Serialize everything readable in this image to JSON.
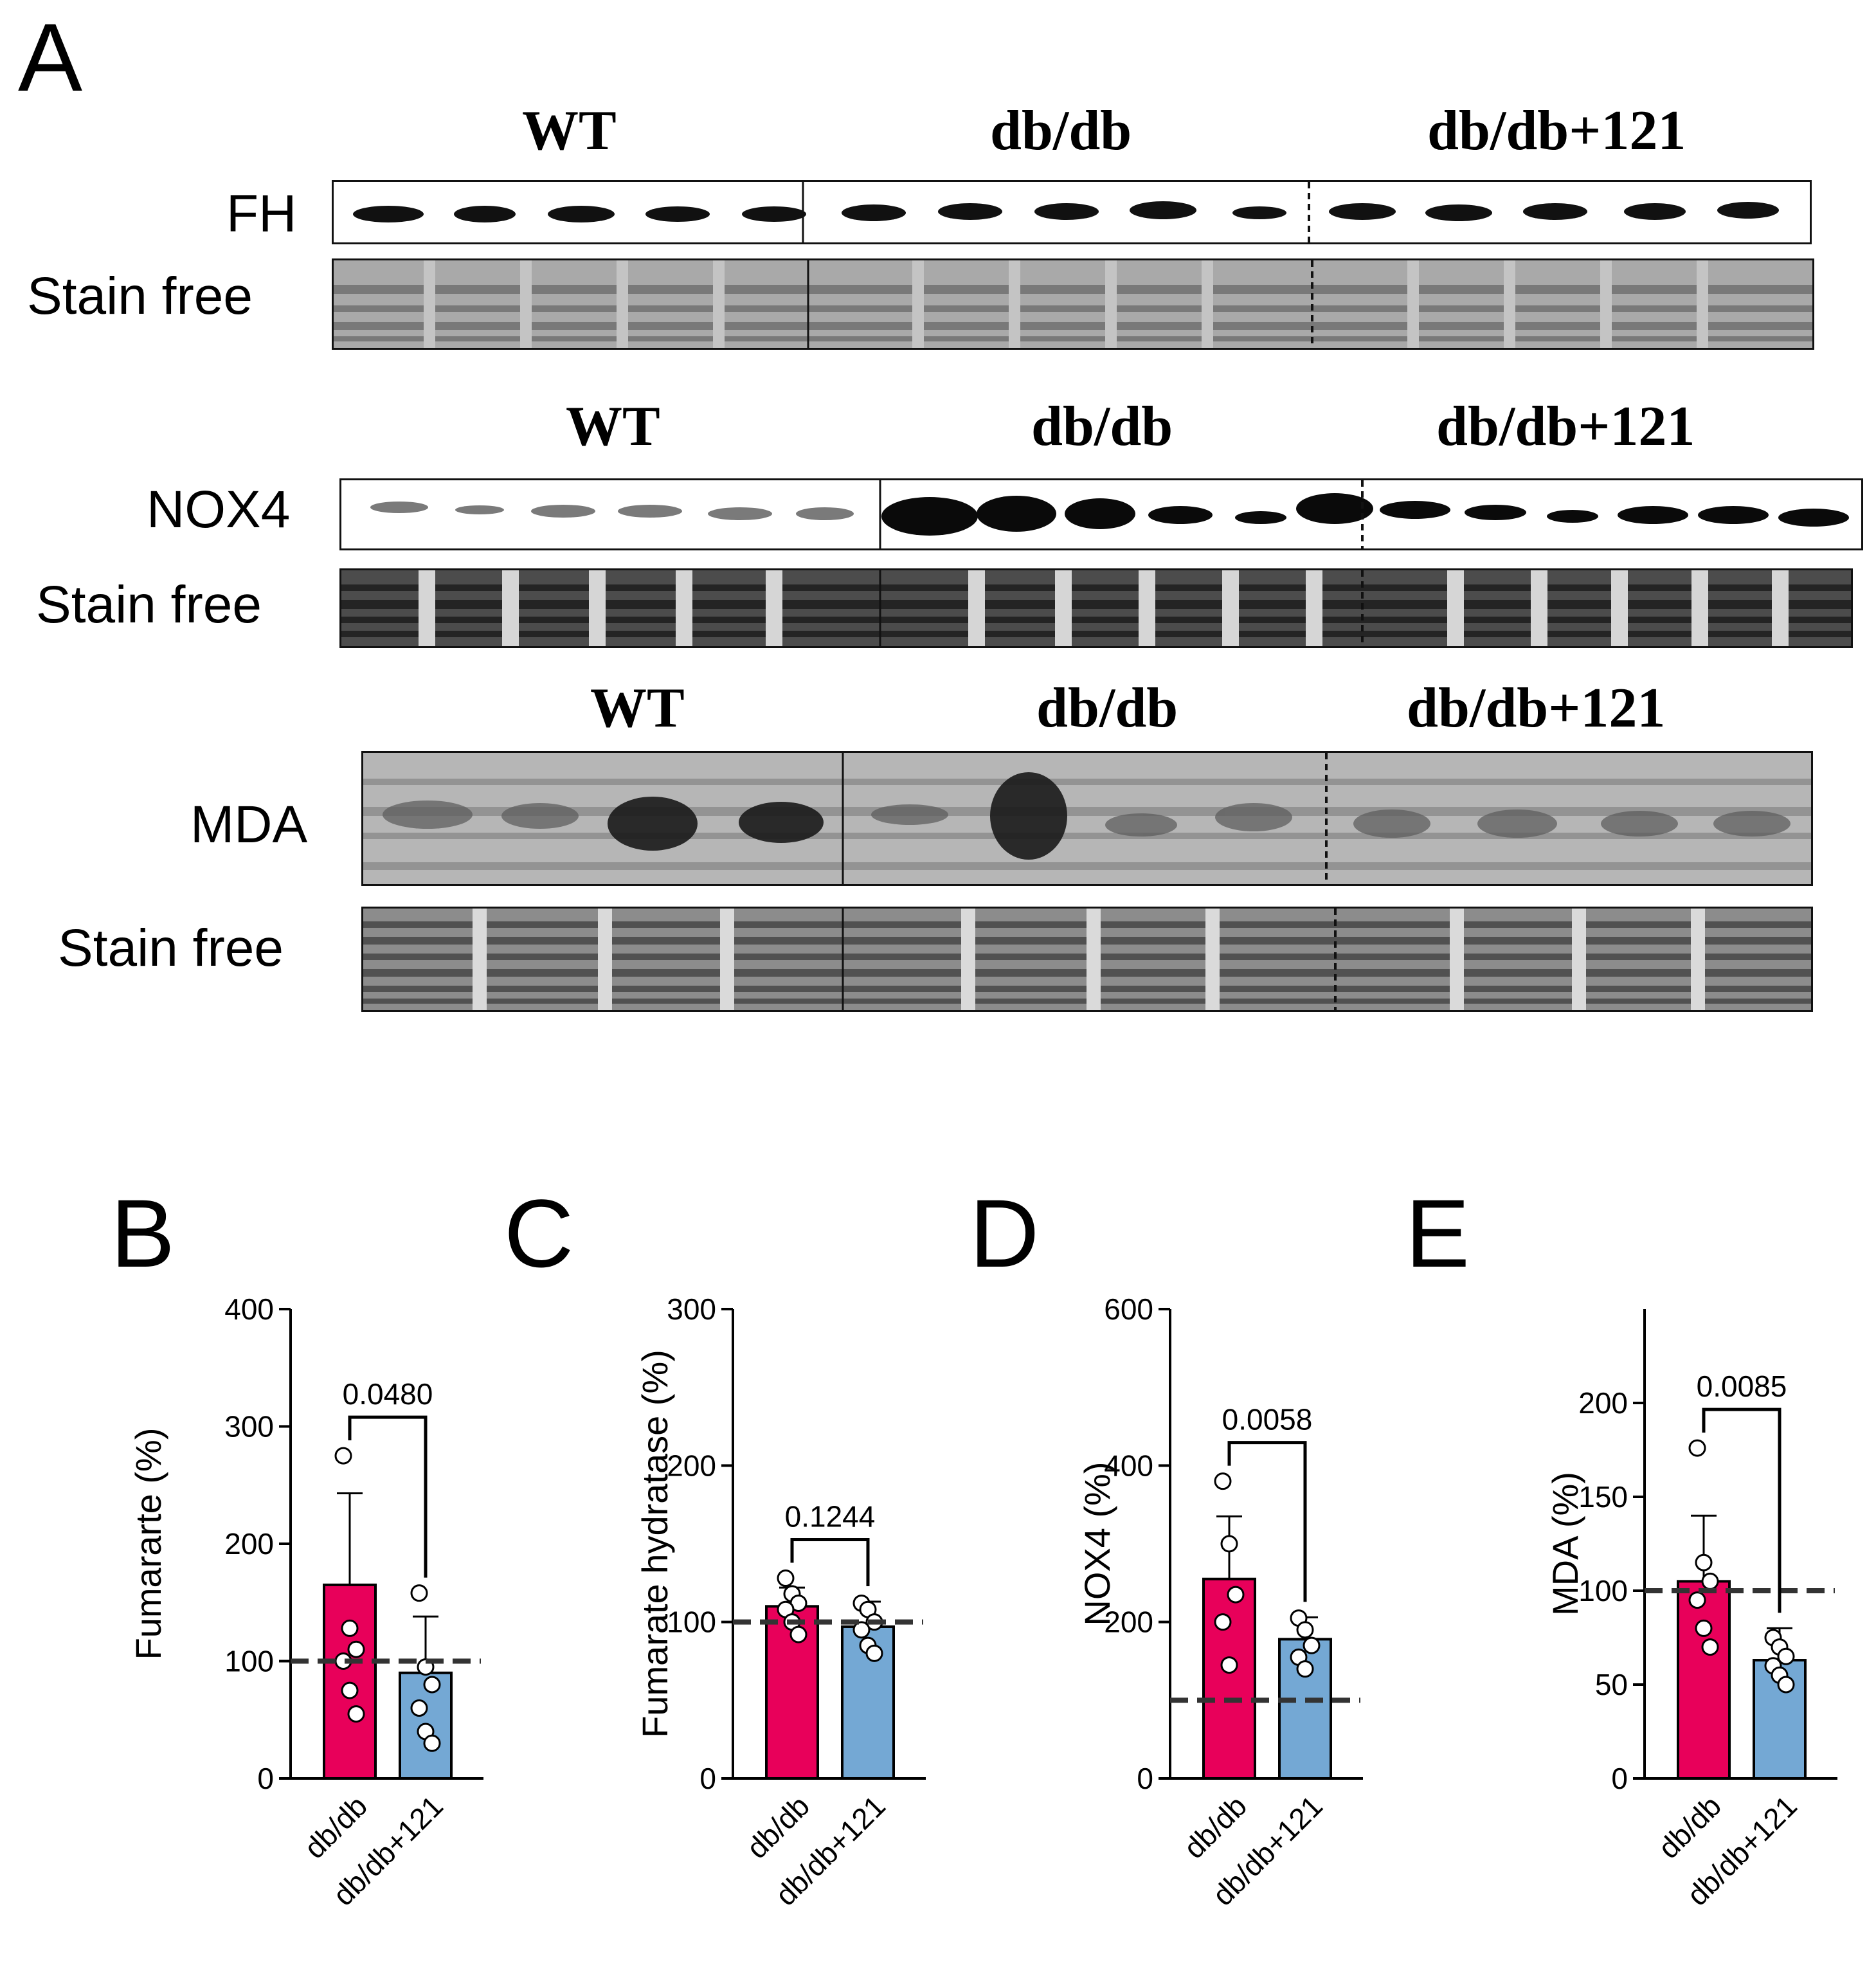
{
  "panel_a": {
    "letter": "A",
    "groups": [
      "WT",
      "db/db",
      "db/db+121"
    ],
    "rows": {
      "fh": "FH",
      "nox4": "NOX4",
      "mda": "MDA",
      "stain_free": "Stain free"
    }
  },
  "chart_data": [
    {
      "panel": "B",
      "type": "bar",
      "categories": [
        "db/db",
        "db/db+121"
      ],
      "values": [
        165,
        90
      ],
      "errors": [
        78,
        48
      ],
      "points": [
        [
          275,
          128,
          110,
          100,
          75,
          55
        ],
        [
          158,
          95,
          80,
          60,
          40,
          30
        ]
      ],
      "ylabel": "Fumararte (%)",
      "ylim": [
        0,
        400
      ],
      "yticks": [
        0,
        100,
        200,
        300,
        400
      ],
      "reference": 100,
      "p_value": "0.0480",
      "colors": [
        "#e8005a",
        "#74a8d4"
      ]
    },
    {
      "panel": "C",
      "type": "bar",
      "categories": [
        "db/db",
        "db/db+121"
      ],
      "values": [
        110,
        97
      ],
      "errors": [
        12,
        16
      ],
      "points": [
        [
          128,
          118,
          112,
          108,
          100,
          92
        ],
        [
          112,
          108,
          100,
          95,
          85,
          80
        ]
      ],
      "ylabel": "Fumarate hydratase (%)",
      "ylim": [
        0,
        300
      ],
      "yticks": [
        0,
        100,
        200,
        300
      ],
      "reference": 100,
      "p_value": "0.1244",
      "colors": [
        "#e8005a",
        "#74a8d4"
      ]
    },
    {
      "panel": "D",
      "type": "bar",
      "categories": [
        "db/db",
        "db/db+121"
      ],
      "values": [
        255,
        178
      ],
      "errors": [
        80,
        28
      ],
      "points": [
        [
          380,
          300,
          235,
          200,
          145
        ],
        [
          205,
          190,
          170,
          155,
          140
        ]
      ],
      "ylabel": "NOX4 (%)",
      "ylim": [
        0,
        600
      ],
      "yticks": [
        0,
        200,
        400,
        600
      ],
      "reference": 100,
      "p_value": "0.0058",
      "colors": [
        "#e8005a",
        "#74a8d4"
      ]
    },
    {
      "panel": "E",
      "type": "bar",
      "categories": [
        "db/db",
        "db/db+121"
      ],
      "values": [
        105,
        63
      ],
      "errors": [
        35,
        17
      ],
      "points": [
        [
          176,
          115,
          105,
          95,
          80,
          70
        ],
        [
          75,
          70,
          65,
          60,
          55,
          50
        ]
      ],
      "ylabel": "MDA (%)",
      "ylim": [
        0,
        250
      ],
      "yticks": [
        0,
        50,
        100,
        150,
        200
      ],
      "reference": 100,
      "p_value": "0.0085",
      "colors": [
        "#e8005a",
        "#74a8d4"
      ]
    }
  ]
}
